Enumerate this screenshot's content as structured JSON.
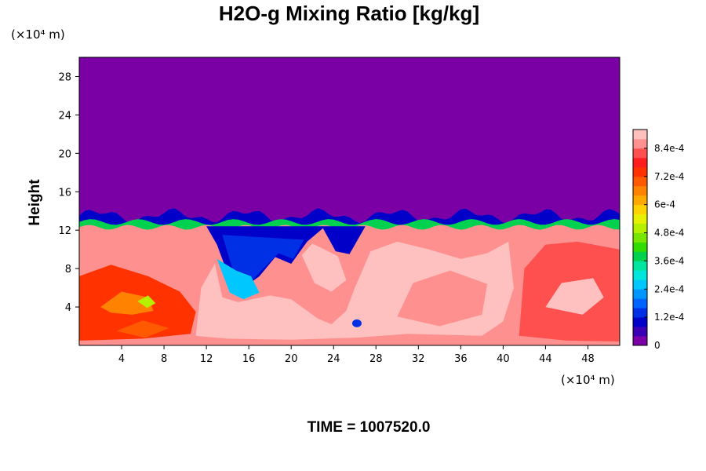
{
  "chart_data": {
    "type": "heatmap",
    "title": "H2O-g Mixing Ratio [kg/kg]",
    "ylabel": "Height",
    "y_unit": "(×10⁴ m)",
    "x_unit": "(×10⁴ m)",
    "time_label": "TIME = 1007520.0",
    "xlim": [
      0,
      51
    ],
    "ylim": [
      0,
      30
    ],
    "x_ticks": [
      {
        "value": 4,
        "label": "4"
      },
      {
        "value": 8,
        "label": "8"
      },
      {
        "value": 12,
        "label": "12"
      },
      {
        "value": 16,
        "label": "16"
      },
      {
        "value": 20,
        "label": "20"
      },
      {
        "value": 24,
        "label": "24"
      },
      {
        "value": 28,
        "label": "28"
      },
      {
        "value": 32,
        "label": "32"
      },
      {
        "value": 36,
        "label": "36"
      },
      {
        "value": 40,
        "label": "40"
      },
      {
        "value": 44,
        "label": "44"
      },
      {
        "value": 48,
        "label": "48"
      }
    ],
    "y_ticks": [
      {
        "value": 4,
        "label": "4"
      },
      {
        "value": 8,
        "label": "8"
      },
      {
        "value": 12,
        "label": "12"
      },
      {
        "value": 16,
        "label": "16"
      },
      {
        "value": 20,
        "label": "20"
      },
      {
        "value": 24,
        "label": "24"
      },
      {
        "value": 28,
        "label": "28"
      }
    ],
    "colorbar": {
      "min": 0,
      "max": 0.00092,
      "tick_labels": [
        {
          "value": 0,
          "label": "0"
        },
        {
          "value": 0.00012,
          "label": "1.2e-4"
        },
        {
          "value": 0.00024,
          "label": "2.4e-4"
        },
        {
          "value": 0.00036,
          "label": "3.6e-4"
        },
        {
          "value": 0.00048,
          "label": "4.8e-4"
        },
        {
          "value": 0.0006,
          "label": "6e-4"
        },
        {
          "value": 0.00072,
          "label": "7.2e-4"
        },
        {
          "value": 0.00084,
          "label": "8.4e-4"
        }
      ],
      "colors": [
        "#7a00a6",
        "#3c00b4",
        "#0000c8",
        "#0030e6",
        "#0064ff",
        "#0096ff",
        "#00c8ff",
        "#00e6dc",
        "#00e6a0",
        "#00d250",
        "#32dc00",
        "#78e600",
        "#b4f000",
        "#e6f000",
        "#ffd200",
        "#ffaa00",
        "#ff8200",
        "#ff5a00",
        "#ff3200",
        "#ff1e1e",
        "#ff5050",
        "#ff9090",
        "#ffc0c0"
      ]
    },
    "regions": {
      "dry_upper_value": 0,
      "moist_layer_top_height": 12.3,
      "transition_layer_height": 13.5,
      "moist_layer_value": 0.00084,
      "saturated_value": 0.00092,
      "dry_intrusion_x_range": [
        12,
        27
      ],
      "dry_intrusion_min_height": 1.5
    }
  }
}
